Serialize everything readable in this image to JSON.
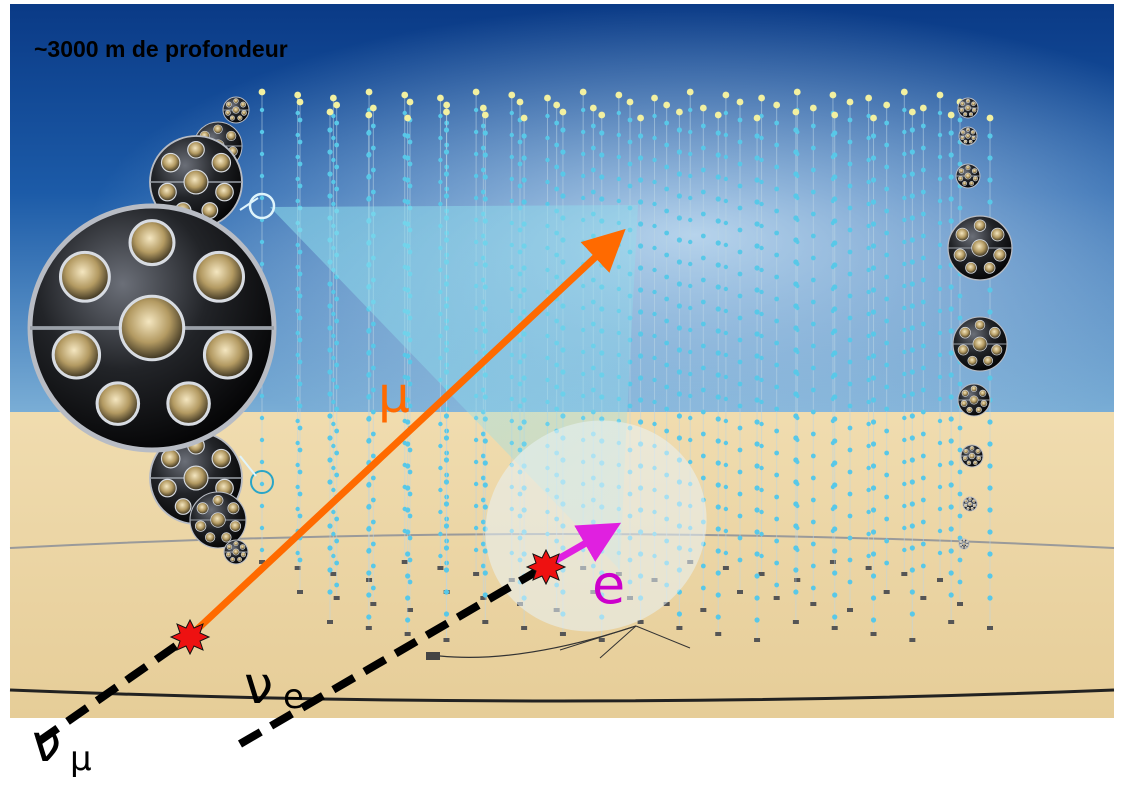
{
  "title": "~3000 m de profondeur",
  "particles": {
    "muon": "μ",
    "electron": "e",
    "nu_e_symbol": "ν",
    "nu_e_subscript": "e",
    "nu_mu_symbol": "ν",
    "nu_mu_subscript": "μ"
  },
  "colors": {
    "muon_track": "#ff6a00",
    "electron_track": "#e020e0",
    "neutrino_track": "#000000",
    "water_deep": "#0e3e8a",
    "seabed": "#ecd6a6",
    "optical_module": "#58c8e8"
  }
}
